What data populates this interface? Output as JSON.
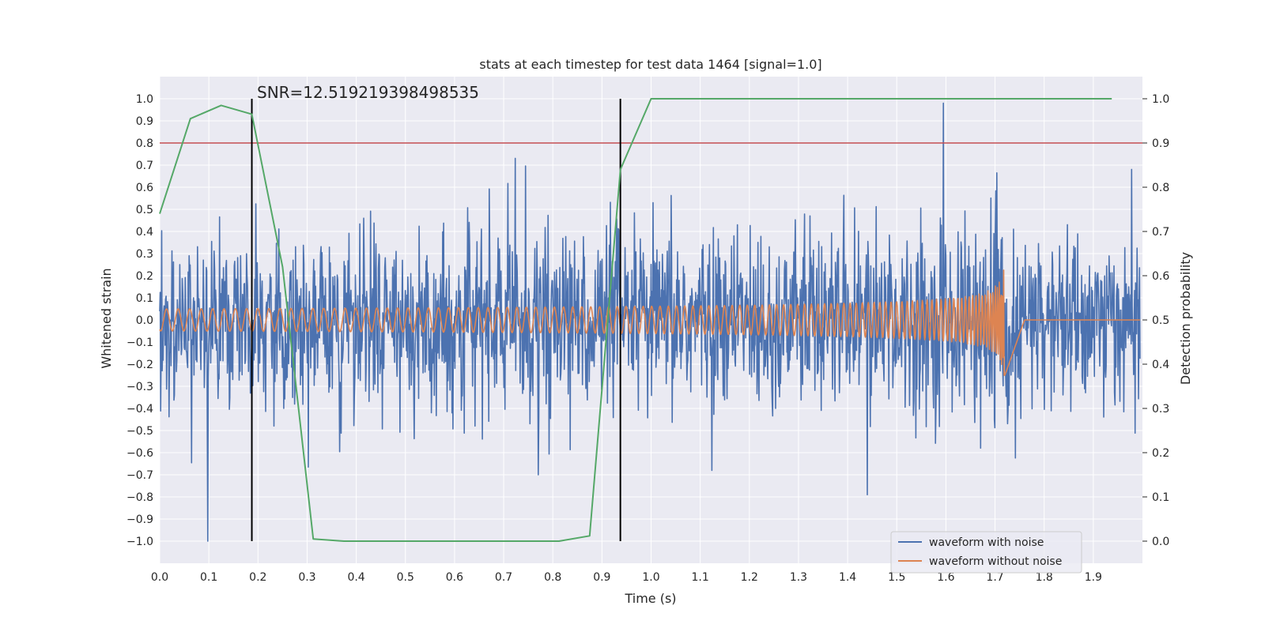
{
  "chart_data": {
    "type": "line",
    "title": "stats at each timestep for test data 1464 [signal=1.0]",
    "xlabel": "Time (s)",
    "ylabel": "Whitened strain",
    "y2label": "Detection probability",
    "xlim": [
      0.0,
      2.0
    ],
    "ylim": [
      -1.1,
      1.1
    ],
    "y2lim": [
      -0.05,
      1.05
    ],
    "xticks": [
      "0.0",
      "0.1",
      "0.2",
      "0.3",
      "0.4",
      "0.5",
      "0.6",
      "0.7",
      "0.8",
      "0.9",
      "1.0",
      "1.1",
      "1.2",
      "1.3",
      "1.4",
      "1.5",
      "1.6",
      "1.7",
      "1.8",
      "1.9"
    ],
    "yticks": [
      "1.0",
      "0.9",
      "0.8",
      "0.7",
      "0.6",
      "0.5",
      "0.4",
      "0.3",
      "0.2",
      "0.1",
      "0.0",
      "−0.1",
      "−0.2",
      "−0.3",
      "−0.4",
      "−0.5",
      "−0.6",
      "−0.7",
      "−0.8",
      "−0.9",
      "−1.0"
    ],
    "y2ticks": [
      "1.0",
      "0.9",
      "0.8",
      "0.7",
      "0.6",
      "0.5",
      "0.4",
      "0.3",
      "0.2",
      "0.1",
      "0.0"
    ],
    "grid": true,
    "legend_position": "lower-right",
    "annotation": "SNR=12.519219398498535",
    "threshold_y2": 0.9,
    "vertical_lines_x": [
      0.1875,
      0.9375
    ],
    "series": [
      {
        "name": "waveform with noise",
        "color": "#4c72b0",
        "axis": "left",
        "description_peaks": {
          "x": [
            0.098,
            0.595,
            0.77,
            1.44,
            1.595
          ],
          "y": [
            -1.0,
            -0.42,
            -0.7,
            -0.79,
            0.98
          ]
        }
      },
      {
        "name": "waveform without noise",
        "color": "#dd8452",
        "axis": "left",
        "chirp": {
          "start_amp": 0.05,
          "peak_amp": 0.31,
          "merger_x": 1.72,
          "end_x": 1.76
        }
      },
      {
        "name": "",
        "color": "#55a868",
        "axis": "right",
        "x": [
          0.0,
          0.0625,
          0.125,
          0.1875,
          0.25,
          0.3125,
          0.375,
          0.4375,
          0.5,
          0.5625,
          0.625,
          0.6875,
          0.75,
          0.8125,
          0.875,
          0.9375,
          1.0,
          1.0625,
          1.125,
          1.1875,
          1.25,
          1.3125,
          1.375,
          1.4375,
          1.5,
          1.5625,
          1.625,
          1.6875,
          1.75,
          1.8125,
          1.875,
          1.9375
        ],
        "y": [
          0.74,
          0.955,
          0.985,
          0.965,
          0.62,
          0.005,
          0.0,
          0.0,
          0.0,
          0.0,
          0.0,
          0.0,
          0.0,
          0.0,
          0.012,
          0.84,
          1.0,
          1.0,
          1.0,
          1.0,
          1.0,
          1.0,
          1.0,
          1.0,
          1.0,
          1.0,
          1.0,
          1.0,
          1.0,
          1.0,
          1.0,
          1.0
        ]
      }
    ]
  },
  "colors": {
    "background": "#eaeaf2",
    "grid": "#ffffff",
    "threshold": "#c44e52",
    "vline": "#000000"
  }
}
